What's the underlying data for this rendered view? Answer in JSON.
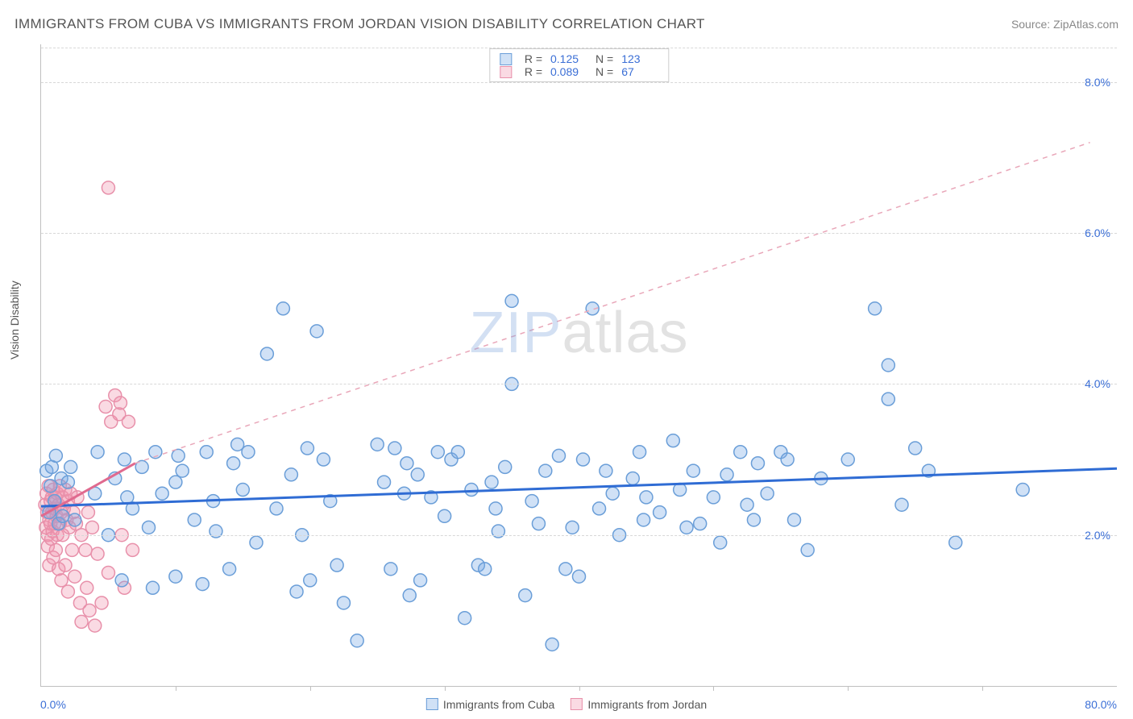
{
  "title": "IMMIGRANTS FROM CUBA VS IMMIGRANTS FROM JORDAN VISION DISABILITY CORRELATION CHART",
  "source_label": "Source:",
  "source_name": "ZipAtlas.com",
  "watermark_a": "ZIP",
  "watermark_b": "atlas",
  "y_axis_label": "Vision Disability",
  "chart": {
    "type": "scatter",
    "xlim": [
      0,
      80
    ],
    "ylim": [
      0,
      8.5
    ],
    "x_ticks": [
      0,
      80
    ],
    "x_tick_labels": [
      "0.0%",
      "80.0%"
    ],
    "y_ticks": [
      2,
      4,
      6,
      8
    ],
    "y_tick_labels": [
      "2.0%",
      "4.0%",
      "6.0%",
      "8.0%"
    ],
    "x_minor_tick_step": 10,
    "grid_color": "#d8d8d8",
    "background_color": "#ffffff",
    "axis_color": "#c0c0c0",
    "tick_label_color": "#3b6fd6",
    "marker_radius": 8,
    "marker_stroke_width": 1.5,
    "series": [
      {
        "name": "Immigrants from Cuba",
        "fill": "rgba(120,170,230,0.35)",
        "stroke": "#6a9ed8",
        "solid_stroke": "#3b6fd6",
        "trend": {
          "x0": 0,
          "y0": 2.38,
          "x1": 80,
          "y1": 2.88,
          "dash": "none",
          "width": 3,
          "color": "#2f6cd4"
        },
        "r_label": "R =",
        "r_value": "0.125",
        "n_label": "N =",
        "n_value": "123",
        "points": [
          [
            0.4,
            2.85
          ],
          [
            0.6,
            2.3
          ],
          [
            0.7,
            2.65
          ],
          [
            0.8,
            2.9
          ],
          [
            1.0,
            2.45
          ],
          [
            1.1,
            3.05
          ],
          [
            1.3,
            2.15
          ],
          [
            1.5,
            2.75
          ],
          [
            1.6,
            2.25
          ],
          [
            2.0,
            2.7
          ],
          [
            2.2,
            2.9
          ],
          [
            2.5,
            2.2
          ],
          [
            4.0,
            2.55
          ],
          [
            4.2,
            3.1
          ],
          [
            5.0,
            2.0
          ],
          [
            5.5,
            2.75
          ],
          [
            6.0,
            1.4
          ],
          [
            6.2,
            3.0
          ],
          [
            6.4,
            2.5
          ],
          [
            6.8,
            2.35
          ],
          [
            7.5,
            2.9
          ],
          [
            8.0,
            2.1
          ],
          [
            8.3,
            1.3
          ],
          [
            8.5,
            3.1
          ],
          [
            9.0,
            2.55
          ],
          [
            10,
            1.45
          ],
          [
            10,
            2.7
          ],
          [
            10.2,
            3.05
          ],
          [
            10.5,
            2.85
          ],
          [
            11.4,
            2.2
          ],
          [
            12,
            1.35
          ],
          [
            12.3,
            3.1
          ],
          [
            12.8,
            2.45
          ],
          [
            13,
            2.05
          ],
          [
            14,
            1.55
          ],
          [
            14.3,
            2.95
          ],
          [
            14.6,
            3.2
          ],
          [
            15,
            2.6
          ],
          [
            15.4,
            3.1
          ],
          [
            16,
            1.9
          ],
          [
            16.8,
            4.4
          ],
          [
            17.5,
            2.35
          ],
          [
            18,
            5.0
          ],
          [
            18.6,
            2.8
          ],
          [
            19,
            1.25
          ],
          [
            19.4,
            2.0
          ],
          [
            19.8,
            3.15
          ],
          [
            20,
            1.4
          ],
          [
            20.5,
            4.7
          ],
          [
            21,
            3.0
          ],
          [
            21.5,
            2.45
          ],
          [
            22,
            1.6
          ],
          [
            22.5,
            1.1
          ],
          [
            23.5,
            0.6
          ],
          [
            25,
            3.2
          ],
          [
            25.5,
            2.7
          ],
          [
            26,
            1.55
          ],
          [
            26.3,
            3.15
          ],
          [
            27,
            2.55
          ],
          [
            27.2,
            2.95
          ],
          [
            27.4,
            1.2
          ],
          [
            28,
            2.8
          ],
          [
            28.2,
            1.4
          ],
          [
            29,
            2.5
          ],
          [
            29.5,
            3.1
          ],
          [
            30,
            2.25
          ],
          [
            30.5,
            3.0
          ],
          [
            31,
            3.1
          ],
          [
            31.5,
            0.9
          ],
          [
            32,
            2.6
          ],
          [
            32.5,
            1.6
          ],
          [
            33,
            1.55
          ],
          [
            33.5,
            2.7
          ],
          [
            33.8,
            2.35
          ],
          [
            34,
            2.05
          ],
          [
            34.5,
            2.9
          ],
          [
            35,
            4.0
          ],
          [
            35,
            5.1
          ],
          [
            36,
            1.2
          ],
          [
            36.5,
            2.45
          ],
          [
            37,
            2.15
          ],
          [
            37.5,
            2.85
          ],
          [
            38,
            0.55
          ],
          [
            38.5,
            3.05
          ],
          [
            39,
            1.55
          ],
          [
            39.5,
            2.1
          ],
          [
            40,
            1.45
          ],
          [
            40.3,
            3.0
          ],
          [
            41,
            5.0
          ],
          [
            41.5,
            2.35
          ],
          [
            42,
            2.85
          ],
          [
            42.5,
            2.55
          ],
          [
            43,
            2.0
          ],
          [
            44,
            2.75
          ],
          [
            44.5,
            3.1
          ],
          [
            44.8,
            2.2
          ],
          [
            45,
            2.5
          ],
          [
            46,
            2.3
          ],
          [
            47,
            3.25
          ],
          [
            47.5,
            2.6
          ],
          [
            48,
            2.1
          ],
          [
            48.5,
            2.85
          ],
          [
            49,
            2.15
          ],
          [
            50,
            2.5
          ],
          [
            50.5,
            1.9
          ],
          [
            51,
            2.8
          ],
          [
            52,
            3.1
          ],
          [
            52.5,
            2.4
          ],
          [
            53,
            2.2
          ],
          [
            53.3,
            2.95
          ],
          [
            54,
            2.55
          ],
          [
            55,
            3.1
          ],
          [
            55.5,
            3.0
          ],
          [
            56,
            2.2
          ],
          [
            57,
            1.8
          ],
          [
            58,
            2.75
          ],
          [
            60,
            3.0
          ],
          [
            62,
            5.0
          ],
          [
            63,
            4.25
          ],
          [
            63,
            3.8
          ],
          [
            64,
            2.4
          ],
          [
            65,
            3.15
          ],
          [
            66,
            2.85
          ],
          [
            68,
            1.9
          ],
          [
            73,
            2.6
          ]
        ]
      },
      {
        "name": "Immigrants from Jordan",
        "fill": "rgba(240,150,175,0.35)",
        "stroke": "#e890aa",
        "solid_stroke": "#e06a8f",
        "trend": {
          "x0": 0,
          "y0": 2.25,
          "x1": 7.0,
          "y1": 2.95,
          "dash": "none",
          "width": 3,
          "color": "#e06a8f"
        },
        "trend_ext": {
          "x0": 7.0,
          "y0": 2.95,
          "x1": 78,
          "y1": 7.2,
          "dash": "6,6",
          "width": 1.5,
          "color": "#e9a7b9"
        },
        "r_label": "R =",
        "r_value": "0.089",
        "n_label": "N =",
        "n_value": "67",
        "points": [
          [
            0.3,
            2.4
          ],
          [
            0.35,
            2.1
          ],
          [
            0.4,
            2.55
          ],
          [
            0.45,
            2.3
          ],
          [
            0.5,
            2.0
          ],
          [
            0.5,
            1.85
          ],
          [
            0.55,
            2.65
          ],
          [
            0.6,
            2.2
          ],
          [
            0.6,
            1.6
          ],
          [
            0.7,
            2.45
          ],
          [
            0.7,
            2.15
          ],
          [
            0.75,
            1.95
          ],
          [
            0.8,
            2.5
          ],
          [
            0.8,
            2.3
          ],
          [
            0.85,
            2.05
          ],
          [
            0.9,
            2.6
          ],
          [
            0.9,
            1.7
          ],
          [
            1.0,
            2.35
          ],
          [
            1.0,
            2.15
          ],
          [
            1.05,
            2.5
          ],
          [
            1.1,
            1.8
          ],
          [
            1.15,
            2.25
          ],
          [
            1.2,
            2.55
          ],
          [
            1.2,
            2.0
          ],
          [
            1.3,
            2.4
          ],
          [
            1.3,
            1.55
          ],
          [
            1.4,
            2.65
          ],
          [
            1.4,
            2.15
          ],
          [
            1.5,
            2.3
          ],
          [
            1.5,
            1.4
          ],
          [
            1.6,
            2.5
          ],
          [
            1.6,
            2.0
          ],
          [
            1.7,
            2.35
          ],
          [
            1.8,
            1.6
          ],
          [
            1.8,
            2.6
          ],
          [
            1.9,
            2.2
          ],
          [
            2.0,
            2.45
          ],
          [
            2.0,
            1.25
          ],
          [
            2.1,
            2.1
          ],
          [
            2.2,
            2.55
          ],
          [
            2.3,
            1.8
          ],
          [
            2.4,
            2.3
          ],
          [
            2.5,
            1.45
          ],
          [
            2.6,
            2.15
          ],
          [
            2.7,
            2.5
          ],
          [
            2.9,
            1.1
          ],
          [
            3.0,
            2.0
          ],
          [
            3.0,
            0.85
          ],
          [
            3.3,
            1.8
          ],
          [
            3.4,
            1.3
          ],
          [
            3.5,
            2.3
          ],
          [
            3.6,
            1.0
          ],
          [
            3.8,
            2.1
          ],
          [
            4.0,
            0.8
          ],
          [
            4.2,
            1.75
          ],
          [
            4.5,
            1.1
          ],
          [
            4.8,
            3.7
          ],
          [
            5.0,
            1.5
          ],
          [
            5.2,
            3.5
          ],
          [
            5.5,
            3.85
          ],
          [
            5.8,
            3.6
          ],
          [
            5.9,
            3.75
          ],
          [
            6.0,
            2.0
          ],
          [
            6.2,
            1.3
          ],
          [
            6.5,
            3.5
          ],
          [
            6.8,
            1.8
          ],
          [
            5.0,
            6.6
          ]
        ]
      }
    ]
  }
}
